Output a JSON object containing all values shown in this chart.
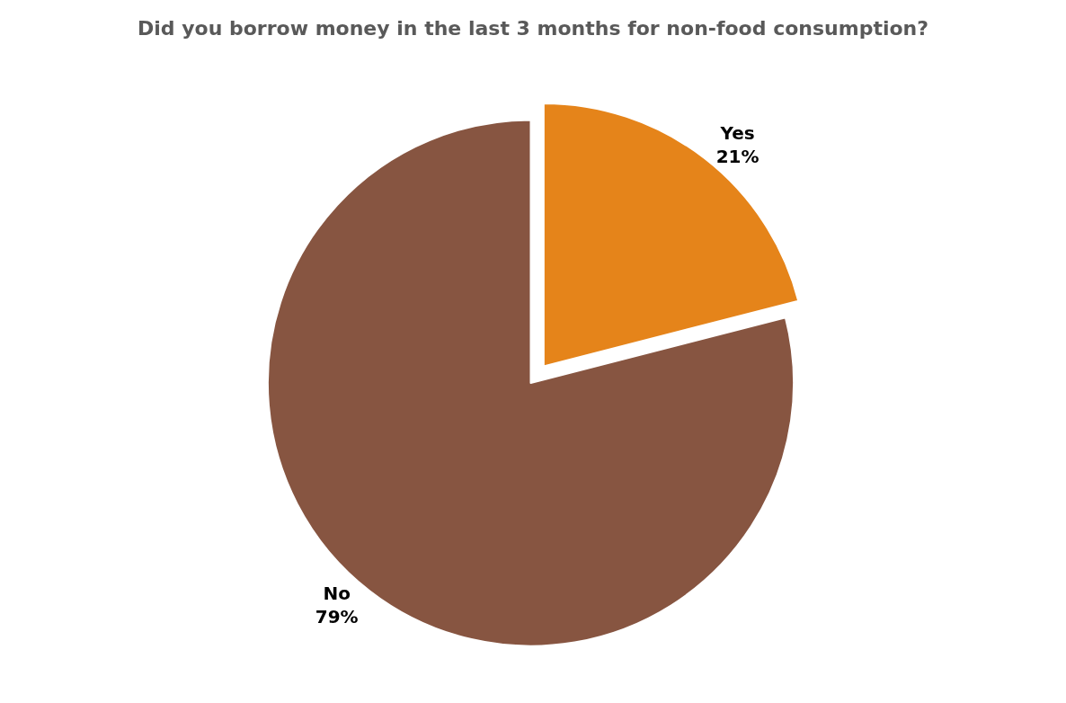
{
  "chart_data": {
    "type": "pie",
    "title": "Did you borrow money in the last 3 months for non-food consumption?",
    "categories": [
      "Yes",
      "No"
    ],
    "values": [
      21,
      79
    ],
    "colors": [
      "#e5841a",
      "#875541"
    ],
    "value_labels": [
      "21%",
      "79%"
    ]
  }
}
